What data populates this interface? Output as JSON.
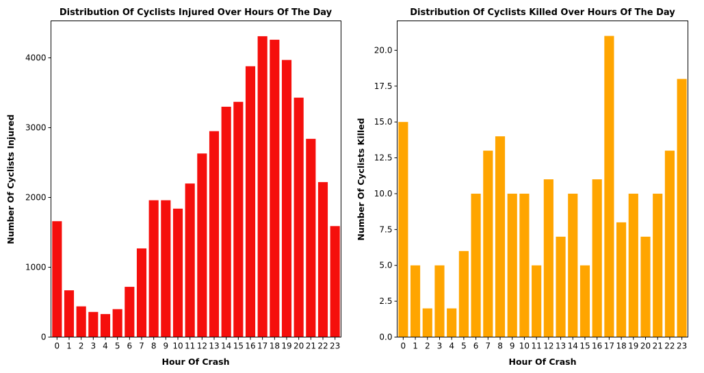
{
  "chart_data": [
    {
      "type": "bar",
      "title": "Distribution Of Cyclists Injured Over Hours Of The Day",
      "xlabel": "Hour Of Crash",
      "ylabel": "Number Of Cyclists Injured",
      "categories": [
        "0",
        "1",
        "2",
        "3",
        "4",
        "5",
        "6",
        "7",
        "8",
        "9",
        "10",
        "11",
        "12",
        "13",
        "14",
        "15",
        "16",
        "17",
        "18",
        "19",
        "20",
        "21",
        "22",
        "23"
      ],
      "values": [
        1660,
        670,
        440,
        360,
        330,
        400,
        720,
        1270,
        1960,
        1960,
        1840,
        2200,
        2630,
        2950,
        3300,
        3370,
        3880,
        4310,
        4260,
        3970,
        3430,
        2840,
        2220,
        1590
      ],
      "ylim": [
        0,
        4530
      ],
      "yticks": [
        0,
        1000,
        2000,
        3000,
        4000
      ],
      "ytick_labels": [
        "0",
        "1000",
        "2000",
        "3000",
        "4000"
      ],
      "color": "#f50f0c",
      "grid": false
    },
    {
      "type": "bar",
      "title": "Distribution Of Cyclists Killed Over Hours Of The Day",
      "xlabel": "Hour Of Crash",
      "ylabel": "Number Of Cyclists Killed",
      "categories": [
        "0",
        "1",
        "2",
        "3",
        "4",
        "5",
        "6",
        "7",
        "8",
        "9",
        "10",
        "11",
        "12",
        "13",
        "14",
        "15",
        "16",
        "17",
        "18",
        "19",
        "20",
        "21",
        "22",
        "23"
      ],
      "values": [
        15,
        5,
        2,
        5,
        2,
        6,
        10,
        13,
        14,
        10,
        10,
        5,
        11,
        7,
        10,
        5,
        11,
        21,
        8,
        10,
        7,
        10,
        13,
        18
      ],
      "ylim": [
        0,
        22.05
      ],
      "yticks": [
        0,
        2.5,
        5,
        7.5,
        10,
        12.5,
        15,
        17.5,
        20
      ],
      "ytick_labels": [
        "0.0",
        "2.5",
        "5.0",
        "7.5",
        "10.0",
        "12.5",
        "15.0",
        "17.5",
        "20.0"
      ],
      "color": "#ffa500",
      "grid": false
    }
  ]
}
